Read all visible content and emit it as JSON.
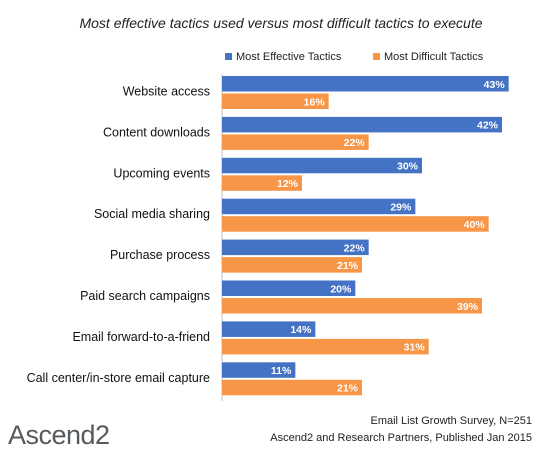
{
  "chart_data": {
    "type": "bar",
    "orientation": "horizontal",
    "title": "Most effective tactics used versus most difficult tactics to execute",
    "categories": [
      "Website access",
      "Content downloads",
      "Upcoming events",
      "Social media sharing",
      "Purchase process",
      "Paid search campaigns",
      "Email forward-to-a-friend",
      "Call center/in-store email capture"
    ],
    "series": [
      {
        "name": "Most Effective Tactics",
        "color": "#4472c4",
        "values": [
          43,
          42,
          30,
          29,
          22,
          20,
          14,
          11
        ]
      },
      {
        "name": "Most Difficult Tactics",
        "color": "#f79646",
        "values": [
          16,
          22,
          12,
          40,
          21,
          39,
          31,
          21
        ]
      }
    ],
    "value_suffix": "%",
    "xlim": [
      0,
      45
    ],
    "grid": false,
    "legend_position": "top-right"
  },
  "source_lines": [
    "Email List Growth Survey, N=251",
    "Ascend2 and Research Partners, Published Jan 2015"
  ],
  "logo_text": "Ascend2"
}
